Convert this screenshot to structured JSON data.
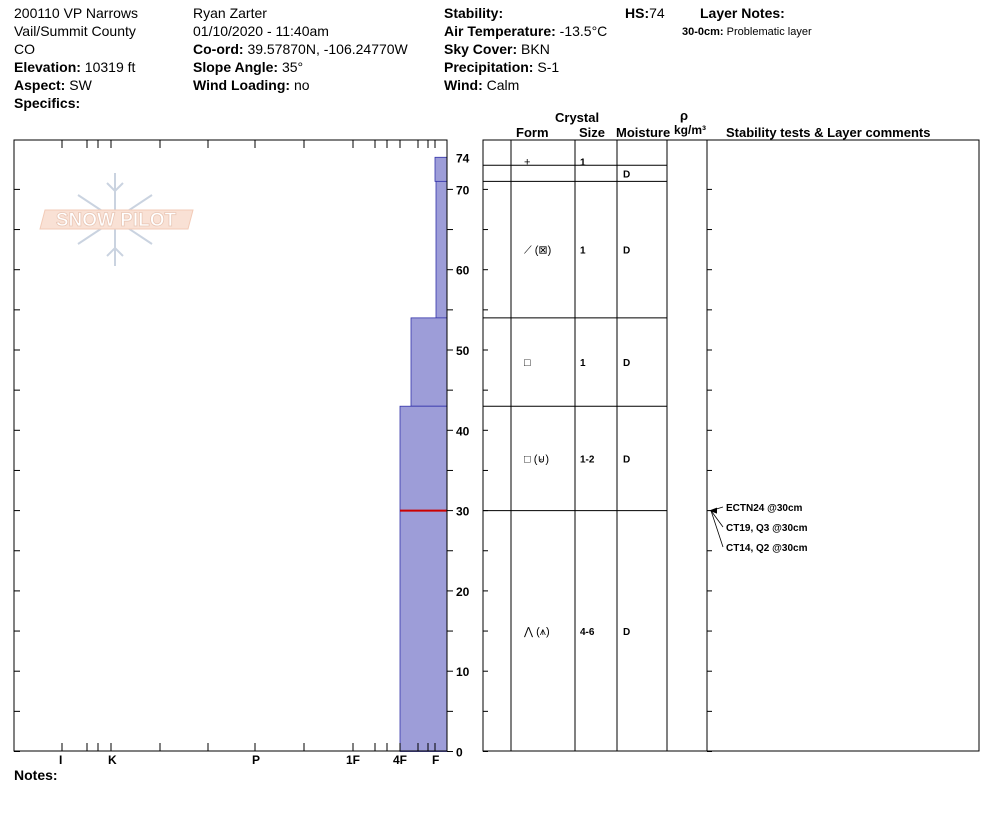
{
  "header": {
    "col1": {
      "line1": "200110 VP Narrows",
      "line2": "Vail/Summit County",
      "line3": "CO",
      "elevation_label": "Elevation:",
      "elevation_value": "10319 ft",
      "aspect_label": "Aspect:",
      "aspect_value": "SW",
      "specifics_label": "Specifics:"
    },
    "col2": {
      "observer": "Ryan Zarter",
      "datetime": "01/10/2020 - 11:40am",
      "coord_label": "Co-ord:",
      "coord_value": "39.57870N, -106.24770W",
      "slope_label": "Slope Angle:",
      "slope_value": "35°",
      "wind_loading_label": "Wind Loading:",
      "wind_loading_value": "no"
    },
    "col3": {
      "stability_label": "Stability:",
      "air_temp_label": "Air Temperature:",
      "air_temp_value": "-13.5°C",
      "sky_label": "Sky Cover:",
      "sky_value": "BKN",
      "precip_label": "Precipitation:",
      "precip_value": "S-1",
      "wind_label": "Wind:",
      "wind_value": "Calm"
    },
    "col4": {
      "hs_label": "HS:",
      "hs_value": "74",
      "layer_notes_label": "Layer Notes:",
      "layer_note_depth": "30-0cm:",
      "layer_note_text": "Problematic layer"
    }
  },
  "table_headers": {
    "crystal": "Crystal",
    "form": "Form",
    "size": "Size",
    "moisture": "Moisture",
    "rho": "ρ",
    "density_unit": "kg/m³",
    "tests": "Stability tests & Layer comments"
  },
  "logo_text": "SNOW PILOT",
  "notes_label": "Notes:",
  "colors": {
    "hardness_fill": "#9d9dd8",
    "hardness_stroke": "#3333aa",
    "weak_layer": "#cc0000"
  },
  "chart_data": {
    "type": "snow-profile",
    "hs": 74,
    "y_axis_ticks": [
      0,
      10,
      20,
      30,
      40,
      50,
      60,
      70,
      74
    ],
    "hardness_scale": [
      "I",
      "K",
      "P",
      "1F",
      "4F",
      "F"
    ],
    "hardness_profile": [
      {
        "top": 74,
        "bottom": 71,
        "hardness": "F"
      },
      {
        "top": 71,
        "bottom": 54,
        "hardness": "F+"
      },
      {
        "top": 54,
        "bottom": 43,
        "hardness": "4F+"
      },
      {
        "top": 43,
        "bottom": 0,
        "hardness": "4F"
      }
    ],
    "weak_layer_depth": 30,
    "layers": [
      {
        "top": 74,
        "bottom": 73,
        "form": "+",
        "size": "1",
        "moisture": ""
      },
      {
        "top": 73,
        "bottom": 71,
        "form": "",
        "size": "",
        "moisture": "D"
      },
      {
        "top": 71,
        "bottom": 54,
        "form": "⟋ (⊠)",
        "size": "1",
        "moisture": "D"
      },
      {
        "top": 54,
        "bottom": 43,
        "form": "□",
        "size": "1",
        "moisture": "D"
      },
      {
        "top": 43,
        "bottom": 30,
        "form": "□ (⊌)",
        "size": "1-2",
        "moisture": "D"
      },
      {
        "top": 30,
        "bottom": 0,
        "form": "⋀ (⩚)",
        "size": "4-6",
        "moisture": "D"
      }
    ],
    "stability_tests": [
      {
        "label": "ECTN24 @30cm",
        "depth": 30
      },
      {
        "label": "CT19, Q3 @30cm",
        "depth": 30
      },
      {
        "label": "CT14, Q2 @30cm",
        "depth": 30
      }
    ]
  }
}
